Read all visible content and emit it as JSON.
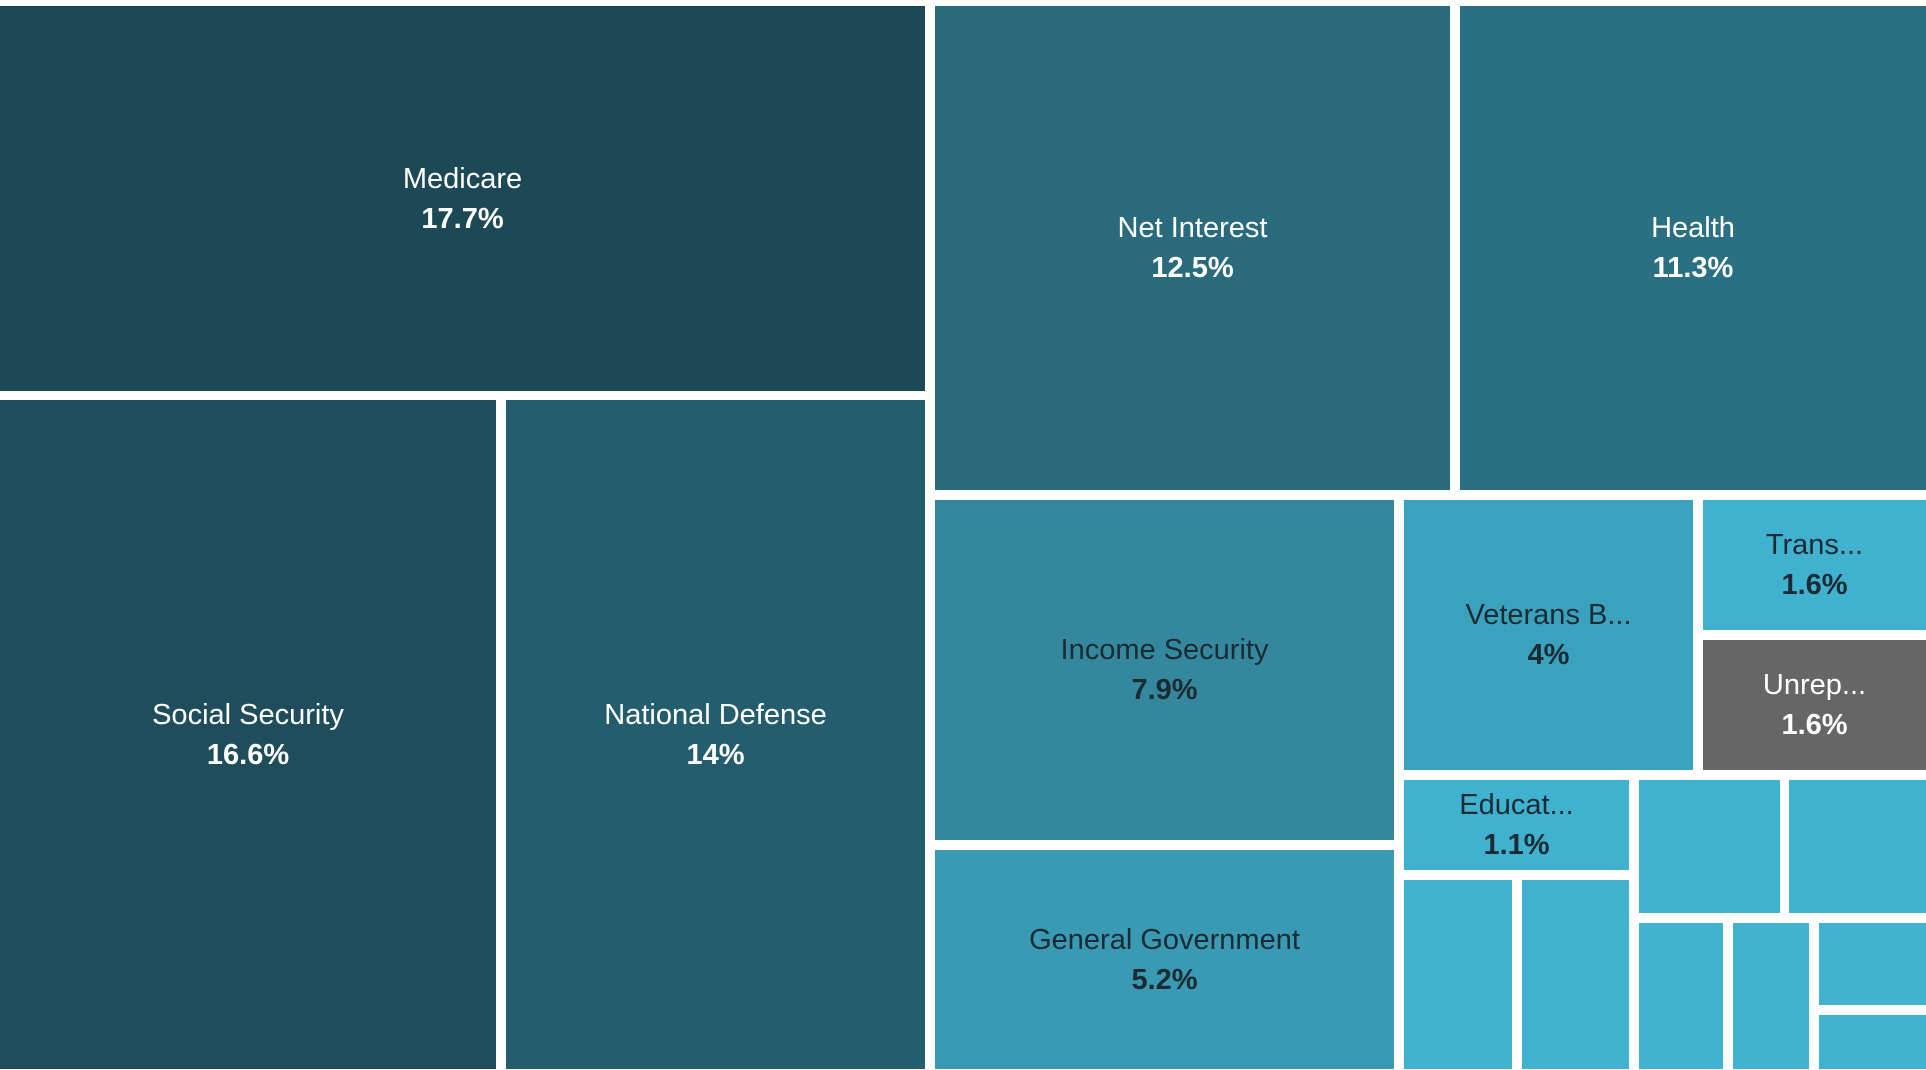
{
  "chart_data": {
    "type": "treemap",
    "series": [
      {
        "name": "Medicare",
        "label": "Medicare",
        "value": 17.7,
        "value_label": "17.7%",
        "color": "#1d4856",
        "text_color": "#ffffff"
      },
      {
        "name": "Social Security",
        "label": "Social Security",
        "value": 16.6,
        "value_label": "16.6%",
        "color": "#1f4d5c",
        "text_color": "#ffffff"
      },
      {
        "name": "National Defense",
        "label": "National Defense",
        "value": 14,
        "value_label": "14%",
        "color": "#245e6e",
        "text_color": "#ffffff"
      },
      {
        "name": "Net Interest",
        "label": "Net Interest",
        "value": 12.5,
        "value_label": "12.5%",
        "color": "#296b7d",
        "text_color": "#ffffff"
      },
      {
        "name": "Health",
        "label": "Health",
        "value": 11.3,
        "value_label": "11.3%",
        "color": "#2a7082",
        "text_color": "#ffffff"
      },
      {
        "name": "Income Security",
        "label": "Income Security",
        "value": 7.9,
        "value_label": "7.9%",
        "color": "#35879e",
        "text_color": "#1b2b33"
      },
      {
        "name": "General Government",
        "label": "General Government",
        "value": 5.2,
        "value_label": "5.2%",
        "color": "#3a99b3",
        "text_color": "#1b2b33"
      },
      {
        "name": "Veterans B...",
        "label": "Veterans B...",
        "value": 4,
        "value_label": "4%",
        "color": "#3aa2bd",
        "text_color": "#1b2b33"
      },
      {
        "name": "Trans...",
        "label": "Trans...",
        "value": 1.6,
        "value_label": "1.6%",
        "color": "#41b1d0",
        "text_color": "#1b2b33"
      },
      {
        "name": "Unrep...",
        "label": "Unrep...",
        "value": 1.6,
        "value_label": "1.6%",
        "color": "#666666",
        "text_color": "#ffffff"
      },
      {
        "name": "Educat...",
        "label": "Educat...",
        "value": 1.1,
        "value_label": "1.1%",
        "color": "#41b1d0",
        "text_color": "#1b2b33"
      },
      {
        "name": "",
        "label": "",
        "value": null,
        "value_label": "",
        "color": "#41b1d0",
        "text_color": "#1b2b33"
      },
      {
        "name": "",
        "label": "",
        "value": null,
        "value_label": "",
        "color": "#41b1d0",
        "text_color": "#1b2b33"
      },
      {
        "name": "",
        "label": "",
        "value": null,
        "value_label": "",
        "color": "#41b1d0",
        "text_color": "#1b2b33"
      },
      {
        "name": "",
        "label": "",
        "value": null,
        "value_label": "",
        "color": "#41b1d0",
        "text_color": "#1b2b33"
      },
      {
        "name": "",
        "label": "",
        "value": null,
        "value_label": "",
        "color": "#41b1d0",
        "text_color": "#1b2b33"
      },
      {
        "name": "",
        "label": "",
        "value": null,
        "value_label": "",
        "color": "#41b1d0",
        "text_color": "#1b2b33"
      },
      {
        "name": "",
        "label": "",
        "value": null,
        "value_label": "",
        "color": "#41b1d0",
        "text_color": "#1b2b33"
      },
      {
        "name": "",
        "label": "",
        "value": null,
        "value_label": "",
        "color": "#41b1d0",
        "text_color": "#1b2b33"
      }
    ]
  }
}
